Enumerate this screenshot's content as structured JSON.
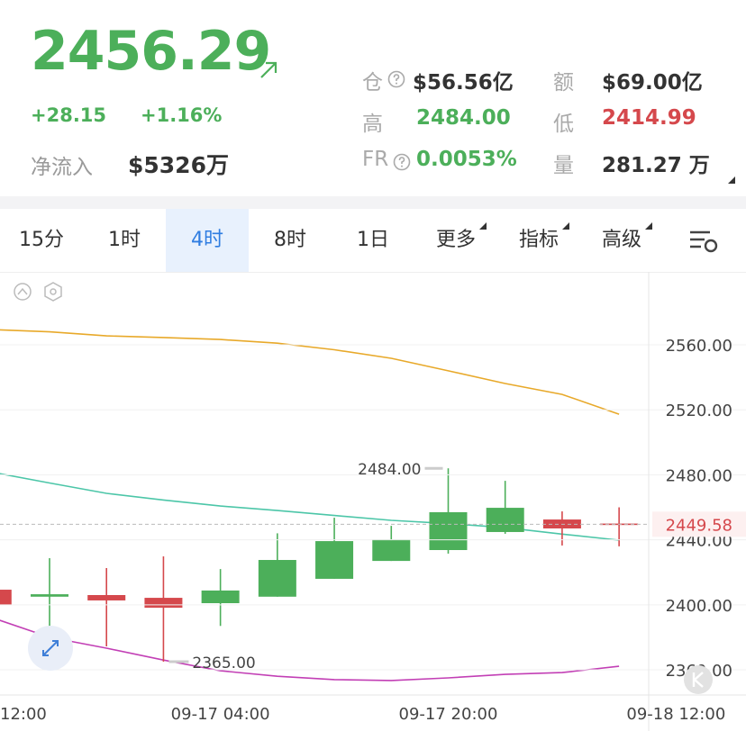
{
  "header": {
    "price": "2456.29",
    "change": "+28.15",
    "change_pct": "+1.16%",
    "net_inflow_label": "净流入",
    "net_inflow": "$5326万",
    "stats": [
      {
        "label": "仓",
        "value": "$56.56亿",
        "color": "#333333"
      },
      {
        "label": "额",
        "value": "$69.00亿",
        "color": "#333333"
      },
      {
        "label": "高",
        "value": "2484.00",
        "color": "#4caf5a"
      },
      {
        "label": "低",
        "value": "2414.99",
        "color": "#d5484c"
      },
      {
        "label": "FR",
        "value": "0.0053%",
        "color": "#4caf5a"
      },
      {
        "label": "量",
        "value": "281.27 万",
        "color": "#333333"
      }
    ]
  },
  "tabs": {
    "items": [
      "15分",
      "1时",
      "4时",
      "8时",
      "1日",
      "更多",
      "指标",
      "高级"
    ],
    "active": 2
  },
  "chart_data": {
    "type": "candlestick",
    "xticks": [
      {
        "value": 0,
        "label": "12:00"
      },
      {
        "value": 4,
        "label": "09-17 04:00"
      },
      {
        "value": 8,
        "label": "09-17 20:00"
      },
      {
        "value": 12,
        "label": "09-18 12:00"
      }
    ],
    "xlim": [
      0.13,
      11.52
    ],
    "ylim": [
      2344.5,
      2604.9
    ],
    "yticks": [
      {
        "value": 2360,
        "label": "2360.00"
      },
      {
        "value": 2400,
        "label": "2400.00"
      },
      {
        "value": 2440,
        "label": "2440.00"
      },
      {
        "value": 2480,
        "label": "2480.00"
      },
      {
        "value": 2520,
        "label": "2520.00"
      },
      {
        "value": 2560,
        "label": "2560.00"
      }
    ],
    "up_color": "#4caf5a",
    "down_color": "#d5484c",
    "open": [
      2409.3,
      2405,
      2406,
      2404.3,
      2401,
      2405,
      2416,
      2427,
      2433.7,
      2444.8,
      2452.5,
      2450
    ],
    "high": [
      2415,
      2428.7,
      2422.6,
      2429.8,
      2422,
      2444,
      2453.6,
      2448.6,
      2484,
      2476.3,
      2457.5,
      2460
    ],
    "low": [
      2398,
      2381.6,
      2374.4,
      2365,
      2387,
      2405,
      2416,
      2427,
      2431.5,
      2443.7,
      2436.5,
      2436
    ],
    "close": [
      2400,
      2406.5,
      2402.7,
      2398.2,
      2408.8,
      2427.6,
      2439.2,
      2440.3,
      2457,
      2459.7,
      2447,
      2449.58
    ],
    "series": [
      {
        "color": "#e8a92a",
        "values": [
          2569.4,
          2568,
          2565.5,
          2564.5,
          2563.3,
          2561,
          2557,
          2551.7,
          2544,
          2536.2,
          2529.5,
          2517.3
        ]
      },
      {
        "color": "#4cc6a8",
        "values": [
          2481.5,
          2475,
          2468.6,
          2464.5,
          2460.8,
          2458,
          2455,
          2452,
          2450,
          2447.5,
          2443.5,
          2439.8
        ]
      },
      {
        "color": "#c23fb5",
        "values": [
          2392,
          2380,
          2373.3,
          2366,
          2359.4,
          2356,
          2354,
          2353.4,
          2355,
          2357.2,
          2358.3,
          2362.2
        ]
      }
    ],
    "annotations": [
      {
        "index": 8,
        "value": 2484,
        "label": "2484.00"
      },
      {
        "index": 3,
        "value": 2365,
        "label": "2365.00"
      }
    ],
    "last_price": {
      "value": 2449.58,
      "label": "2449.58"
    },
    "grid": true
  }
}
